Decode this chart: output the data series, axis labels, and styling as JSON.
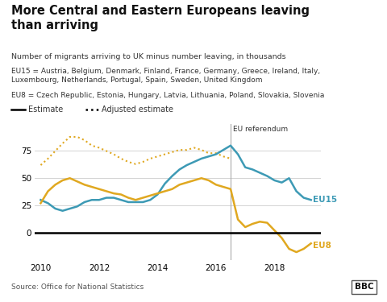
{
  "title": "More Central and Eastern Europeans leaving\nthan arriving",
  "subtitle": "Number of migrants arriving to UK minus number leaving, in thousands",
  "eu15_note": "EU15 = Austria, Belgium, Denmark, Finland, France, Germany, Greece, Ireland, Italy,\nLuxembourg, Netherlands, Portugal, Spain, Sweden, United Kingdom",
  "eu8_note": "EU8 = Czech Republic, Estonia, Hungary, Latvia, Lithuania, Poland, Slovakia, Slovenia",
  "source": "Source: Office for National Statistics",
  "eu15_color": "#3d9ab5",
  "eu8_color": "#e0a820",
  "referendum_x": 2016.5,
  "ylim": [
    -25,
    100
  ],
  "xlim": [
    2009.8,
    2019.6
  ],
  "yticks": [
    0,
    25,
    50,
    75
  ],
  "xticks": [
    2010,
    2012,
    2014,
    2016,
    2018
  ],
  "eu15_x": [
    2010.0,
    2010.25,
    2010.5,
    2010.75,
    2011.0,
    2011.25,
    2011.5,
    2011.75,
    2012.0,
    2012.25,
    2012.5,
    2012.75,
    2013.0,
    2013.25,
    2013.5,
    2013.75,
    2014.0,
    2014.25,
    2014.5,
    2014.75,
    2015.0,
    2015.25,
    2015.5,
    2015.75,
    2016.0,
    2016.25,
    2016.5,
    2016.75,
    2017.0,
    2017.25,
    2017.5,
    2017.75,
    2018.0,
    2018.25,
    2018.5,
    2018.75,
    2019.0,
    2019.25
  ],
  "eu15_y": [
    30,
    27,
    22,
    20,
    22,
    24,
    28,
    30,
    30,
    32,
    32,
    30,
    28,
    28,
    28,
    30,
    35,
    45,
    52,
    58,
    62,
    65,
    68,
    70,
    72,
    76,
    80,
    72,
    60,
    58,
    55,
    52,
    48,
    46,
    50,
    38,
    32,
    30
  ],
  "eu8_x": [
    2010.0,
    2010.25,
    2010.5,
    2010.75,
    2011.0,
    2011.25,
    2011.5,
    2011.75,
    2012.0,
    2012.25,
    2012.5,
    2012.75,
    2013.0,
    2013.25,
    2013.5,
    2013.75,
    2014.0,
    2014.25,
    2014.5,
    2014.75,
    2015.0,
    2015.25,
    2015.5,
    2015.75,
    2016.0,
    2016.25,
    2016.5,
    2016.75,
    2017.0,
    2017.25,
    2017.5,
    2017.75,
    2018.0,
    2018.25,
    2018.5,
    2018.75,
    2019.0,
    2019.25
  ],
  "eu8_y": [
    27,
    38,
    44,
    48,
    50,
    47,
    44,
    42,
    40,
    38,
    36,
    35,
    32,
    30,
    32,
    34,
    36,
    38,
    40,
    44,
    46,
    48,
    50,
    48,
    44,
    42,
    40,
    12,
    5,
    8,
    10,
    9,
    2,
    -5,
    -15,
    -18,
    -15,
    -10
  ],
  "eu8_adj_x": [
    2010.0,
    2010.25,
    2010.5,
    2010.75,
    2011.0,
    2011.25,
    2011.5,
    2011.75,
    2012.0,
    2012.25,
    2012.5,
    2012.75,
    2013.0,
    2013.25,
    2013.5,
    2013.75,
    2014.0,
    2014.25,
    2014.5,
    2014.75,
    2015.0,
    2015.25,
    2015.5,
    2015.75,
    2016.0,
    2016.25,
    2016.5
  ],
  "eu8_adj_y": [
    62,
    68,
    75,
    82,
    88,
    88,
    85,
    80,
    78,
    75,
    72,
    68,
    65,
    63,
    65,
    68,
    70,
    72,
    74,
    76,
    76,
    78,
    76,
    73,
    73,
    70,
    68
  ]
}
